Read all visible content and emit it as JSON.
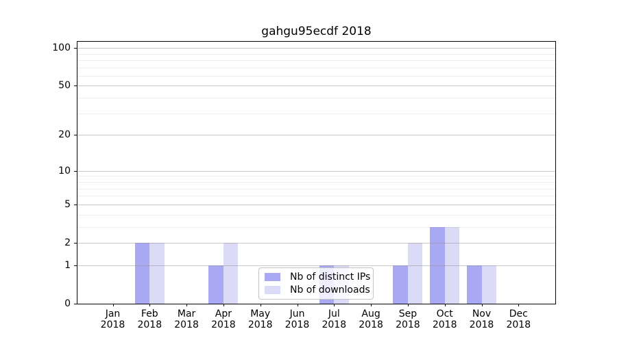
{
  "title": "gahgu95ecdf 2018",
  "colors": {
    "distinct_ips": "#a9a9f3",
    "downloads": "#dbdbf8",
    "grid_major": "rgba(130,130,130,0.45)",
    "grid_minor": "rgba(130,130,130,0.15)",
    "axis": "#000000",
    "legend_border": "#c4c4c4",
    "legend_bg": "rgba(255,255,255,0.8)"
  },
  "legend": {
    "items": [
      {
        "label": "Nb of distinct IPs",
        "color_key": "distinct_ips"
      },
      {
        "label": "Nb of downloads",
        "color_key": "downloads"
      }
    ]
  },
  "chart_data": {
    "type": "bar",
    "title": "gahgu95ecdf 2018",
    "categories": [
      "Jan 2018",
      "Feb 2018",
      "Mar 2018",
      "Apr 2018",
      "May 2018",
      "Jun 2018",
      "Jul 2018",
      "Aug 2018",
      "Sep 2018",
      "Oct 2018",
      "Nov 2018",
      "Dec 2018"
    ],
    "x_tick_labels": [
      [
        "Jan",
        "2018"
      ],
      [
        "Feb",
        "2018"
      ],
      [
        "Mar",
        "2018"
      ],
      [
        "Apr",
        "2018"
      ],
      [
        "May",
        "2018"
      ],
      [
        "Jun",
        "2018"
      ],
      [
        "Jul",
        "2018"
      ],
      [
        "Aug",
        "2018"
      ],
      [
        "Sep",
        "2018"
      ],
      [
        "Oct",
        "2018"
      ],
      [
        "Nov",
        "2018"
      ],
      [
        "Dec",
        "2018"
      ]
    ],
    "series": [
      {
        "name": "Nb of distinct IPs",
        "values": [
          0,
          2,
          0,
          1,
          0,
          0,
          1,
          0,
          1,
          3,
          1,
          0
        ]
      },
      {
        "name": "Nb of downloads",
        "values": [
          0,
          2,
          0,
          2,
          0,
          0,
          1,
          0,
          2,
          3,
          1,
          0
        ]
      }
    ],
    "xlabel": "",
    "ylabel": "",
    "y_scale": "log10(1+x)",
    "y_ticks": [
      0,
      1,
      2,
      5,
      10,
      20,
      50,
      100
    ],
    "y_gridlines_major": [
      1,
      2,
      5,
      10,
      20,
      50,
      100
    ],
    "y_gridlines_minor": [
      3,
      4,
      6,
      7,
      8,
      9,
      30,
      40,
      60,
      70,
      80,
      90
    ],
    "ylim": [
      0,
      112
    ],
    "grid": true,
    "grid_above_bars": true,
    "legend_position": "inside lower-center-left"
  }
}
